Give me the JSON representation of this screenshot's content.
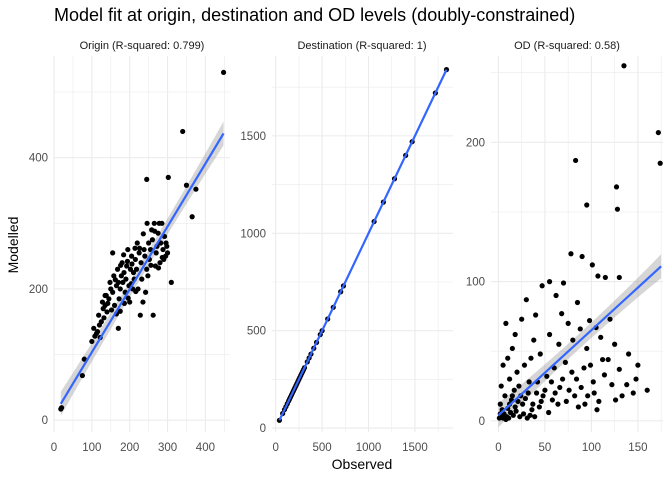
{
  "chart_data": {
    "type": "scatter",
    "title": "Model fit at origin, destination and OD levels (doubly-constrained)",
    "xlabel": "Observed",
    "ylabel": "Modelled",
    "grid": true,
    "colors": {
      "points": "#000000",
      "fit_line": "#3366ff",
      "ribbon": "#999999",
      "grid": "#ebebeb"
    },
    "panels": [
      {
        "name": "origin",
        "title": "Origin (R-squared: 0.799)",
        "xlim": [
          0,
          465
        ],
        "ylim": [
          -18,
          555
        ],
        "xticks": [
          0,
          100,
          200,
          300,
          400
        ],
        "yticks": [
          0,
          200,
          400
        ],
        "fit": {
          "x": [
            18,
            448
          ],
          "y": [
            25,
            437
          ]
        },
        "points": [
          [
            18,
            17
          ],
          [
            20,
            19
          ],
          [
            75,
            68
          ],
          [
            80,
            93
          ],
          [
            100,
            120
          ],
          [
            108,
            128
          ],
          [
            105,
            140
          ],
          [
            115,
            135
          ],
          [
            120,
            145
          ],
          [
            118,
            160
          ],
          [
            125,
            150
          ],
          [
            130,
            170
          ],
          [
            128,
            180
          ],
          [
            135,
            175
          ],
          [
            140,
            165
          ],
          [
            138,
            190
          ],
          [
            145,
            185
          ],
          [
            150,
            200
          ],
          [
            148,
            210
          ],
          [
            155,
            195
          ],
          [
            160,
            175
          ],
          [
            158,
            220
          ],
          [
            165,
            205
          ],
          [
            168,
            230
          ],
          [
            170,
            210
          ],
          [
            172,
            185
          ],
          [
            175,
            200
          ],
          [
            178,
            220
          ],
          [
            180,
            240
          ],
          [
            182,
            210
          ],
          [
            185,
            225
          ],
          [
            188,
            195
          ],
          [
            190,
            215
          ],
          [
            192,
            235
          ],
          [
            195,
            260
          ],
          [
            198,
            205
          ],
          [
            200,
            180
          ],
          [
            202,
            230
          ],
          [
            205,
            250
          ],
          [
            208,
            200
          ],
          [
            210,
            225
          ],
          [
            212,
            215
          ],
          [
            215,
            245
          ],
          [
            218,
            230
          ],
          [
            220,
            270
          ],
          [
            222,
            200
          ],
          [
            225,
            255
          ],
          [
            228,
            160
          ],
          [
            230,
            240
          ],
          [
            232,
            215
          ],
          [
            235,
            180
          ],
          [
            238,
            260
          ],
          [
            240,
            250
          ],
          [
            242,
            195
          ],
          [
            245,
            230
          ],
          [
            248,
            220
          ],
          [
            250,
            270
          ],
          [
            252,
            245
          ],
          [
            255,
            260
          ],
          [
            258,
            290
          ],
          [
            260,
            275
          ],
          [
            262,
            160
          ],
          [
            265,
            300
          ],
          [
            268,
            235
          ],
          [
            270,
            255
          ],
          [
            272,
            265
          ],
          [
            275,
            285
          ],
          [
            278,
            300
          ],
          [
            280,
            240
          ],
          [
            282,
            270
          ],
          [
            285,
            300
          ],
          [
            288,
            260
          ],
          [
            290,
            245
          ],
          [
            292,
            280
          ],
          [
            295,
            250
          ],
          [
            298,
            265
          ],
          [
            300,
            255
          ],
          [
            302,
            370
          ],
          [
            310,
            210
          ],
          [
            165,
            162
          ],
          [
            170,
            140
          ],
          [
            175,
            166
          ],
          [
            155,
            255
          ],
          [
            245,
            367
          ],
          [
            340,
            440
          ],
          [
            350,
            358
          ],
          [
            365,
            310
          ],
          [
            375,
            352
          ],
          [
            448,
            530
          ],
          [
            135,
            190
          ],
          [
            142,
            178
          ],
          [
            186,
            178
          ],
          [
            196,
            186
          ],
          [
            206,
            238
          ],
          [
            216,
            196
          ],
          [
            226,
            262
          ],
          [
            236,
            284
          ],
          [
            246,
            300
          ],
          [
            256,
            236
          ],
          [
            266,
            288
          ],
          [
            276,
            232
          ],
          [
            286,
            248
          ],
          [
            296,
            270
          ],
          [
            112,
            132
          ],
          [
            122,
            126
          ],
          [
            132,
            156
          ],
          [
            152,
            168
          ],
          [
            162,
            214
          ],
          [
            176,
            236
          ],
          [
            184,
            252
          ],
          [
            194,
            242
          ],
          [
            204,
            208
          ],
          [
            214,
            262
          ]
        ]
      },
      {
        "name": "destination",
        "title": "Destination (R-squared: 1)",
        "xlim": [
          -40,
          1910
        ],
        "ylim": [
          -20,
          1910
        ],
        "xticks": [
          0,
          500,
          1000,
          1500
        ],
        "yticks": [
          0,
          500,
          1000,
          1500
        ],
        "fit": {
          "x": [
            40,
            1840
          ],
          "y": [
            40,
            1840
          ]
        },
        "points": [
          [
            40,
            40
          ],
          [
            75,
            75
          ],
          [
            95,
            95
          ],
          [
            110,
            110
          ],
          [
            125,
            125
          ],
          [
            140,
            140
          ],
          [
            150,
            150
          ],
          [
            160,
            160
          ],
          [
            170,
            170
          ],
          [
            180,
            180
          ],
          [
            190,
            190
          ],
          [
            200,
            200
          ],
          [
            210,
            210
          ],
          [
            220,
            220
          ],
          [
            230,
            230
          ],
          [
            240,
            240
          ],
          [
            250,
            250
          ],
          [
            260,
            260
          ],
          [
            270,
            270
          ],
          [
            280,
            280
          ],
          [
            290,
            290
          ],
          [
            300,
            300
          ],
          [
            310,
            310
          ],
          [
            340,
            340
          ],
          [
            360,
            360
          ],
          [
            380,
            380
          ],
          [
            410,
            410
          ],
          [
            440,
            440
          ],
          [
            480,
            480
          ],
          [
            500,
            500
          ],
          [
            560,
            560
          ],
          [
            620,
            620
          ],
          [
            700,
            700
          ],
          [
            730,
            730
          ],
          [
            1060,
            1060
          ],
          [
            1160,
            1160
          ],
          [
            1280,
            1280
          ],
          [
            1400,
            1400
          ],
          [
            1470,
            1470
          ],
          [
            1720,
            1720
          ],
          [
            1840,
            1840
          ]
        ]
      },
      {
        "name": "od",
        "title": "OD (R-squared: 0.58)",
        "xlim": [
          -8,
          177
        ],
        "ylim": [
          -8,
          262
        ],
        "xticks": [
          0,
          50,
          100,
          150
        ],
        "yticks": [
          0,
          100,
          200
        ],
        "fit": {
          "x": [
            0,
            175
          ],
          "y": [
            4,
            111
          ]
        },
        "points": [
          [
            135,
            255
          ],
          [
            172,
            207
          ],
          [
            174,
            185
          ],
          [
            83,
            187
          ],
          [
            127,
            168
          ],
          [
            95,
            155
          ],
          [
            128,
            152
          ],
          [
            78,
            120
          ],
          [
            90,
            118
          ],
          [
            55,
            100
          ],
          [
            101,
            112
          ],
          [
            107,
            104
          ],
          [
            47,
            97
          ],
          [
            70,
            99
          ],
          [
            30,
            87
          ],
          [
            115,
            103
          ],
          [
            130,
            103
          ],
          [
            62,
            90
          ],
          [
            85,
            85
          ],
          [
            68,
            77
          ],
          [
            40,
            76
          ],
          [
            98,
            72
          ],
          [
            75,
            70
          ],
          [
            120,
            73
          ],
          [
            105,
            67
          ],
          [
            88,
            66
          ],
          [
            25,
            73
          ],
          [
            8,
            70
          ],
          [
            55,
            62
          ],
          [
            38,
            58
          ],
          [
            18,
            62
          ],
          [
            65,
            55
          ],
          [
            95,
            52
          ],
          [
            125,
            55
          ],
          [
            140,
            48
          ],
          [
            110,
            60
          ],
          [
            80,
            58
          ],
          [
            45,
            48
          ],
          [
            15,
            52
          ],
          [
            35,
            45
          ],
          [
            72,
            42
          ],
          [
            92,
            38
          ],
          [
            118,
            44
          ],
          [
            130,
            37
          ],
          [
            150,
            40
          ],
          [
            60,
            38
          ],
          [
            28,
            40
          ],
          [
            10,
            45
          ],
          [
            52,
            32
          ],
          [
            84,
            30
          ],
          [
            102,
            28
          ],
          [
            138,
            26
          ],
          [
            20,
            35
          ],
          [
            42,
            28
          ],
          [
            66,
            24
          ],
          [
            114,
            33
          ],
          [
            5,
            40
          ],
          [
            12,
            30
          ],
          [
            22,
            25
          ],
          [
            32,
            20
          ],
          [
            48,
            18
          ],
          [
            58,
            15
          ],
          [
            76,
            22
          ],
          [
            96,
            18
          ],
          [
            126,
            15
          ],
          [
            145,
            20
          ],
          [
            3,
            25
          ],
          [
            7,
            18
          ],
          [
            14,
            15
          ],
          [
            18,
            10
          ],
          [
            26,
            12
          ],
          [
            36,
            8
          ],
          [
            44,
            10
          ],
          [
            54,
            6
          ],
          [
            64,
            12
          ],
          [
            86,
            10
          ],
          [
            106,
            8
          ],
          [
            2,
            12
          ],
          [
            4,
            8
          ],
          [
            6,
            5
          ],
          [
            9,
            3
          ],
          [
            11,
            2
          ],
          [
            13,
            6
          ],
          [
            16,
            4
          ],
          [
            19,
            7
          ],
          [
            23,
            3
          ],
          [
            27,
            5
          ],
          [
            31,
            2
          ],
          [
            34,
            4
          ],
          [
            39,
            3
          ],
          [
            1,
            2
          ],
          [
            2,
            5
          ],
          [
            3,
            3
          ],
          [
            5,
            2
          ],
          [
            8,
            1
          ],
          [
            10,
            9
          ],
          [
            12,
            12
          ],
          [
            15,
            18
          ],
          [
            17,
            22
          ],
          [
            21,
            14
          ],
          [
            24,
            18
          ],
          [
            29,
            16
          ],
          [
            33,
            28
          ],
          [
            37,
            12
          ],
          [
            41,
            20
          ],
          [
            46,
            14
          ],
          [
            50,
            22
          ],
          [
            57,
            28
          ],
          [
            61,
            20
          ],
          [
            69,
            30
          ],
          [
            73,
            14
          ],
          [
            79,
            35
          ],
          [
            82,
            18
          ],
          [
            89,
            24
          ],
          [
            93,
            12
          ],
          [
            99,
            40
          ],
          [
            103,
            20
          ],
          [
            108,
            14
          ],
          [
            112,
            44
          ],
          [
            122,
            26
          ],
          [
            133,
            18
          ],
          [
            148,
            30
          ],
          [
            160,
            22
          ]
        ]
      }
    ]
  }
}
